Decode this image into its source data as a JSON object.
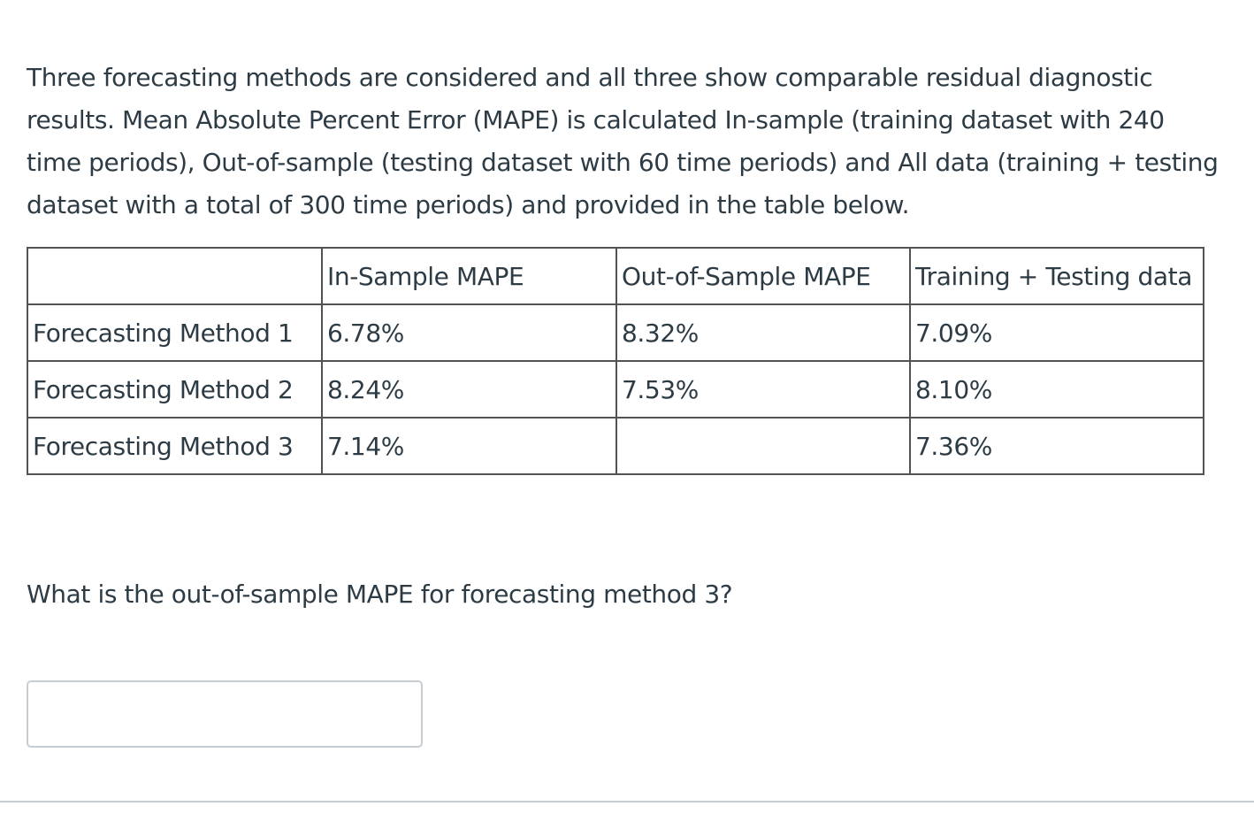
{
  "question": {
    "text": "Three forecasting methods are considered and all three show comparable residual diagnostic results. Mean Absolute Percent Error (MAPE) is calculated In-sample (training dataset with 240 time periods), Out-of-sample (testing dataset with 60 time periods) and All data (training + testing dataset with a total of 300 time periods) and provided in the table below."
  },
  "table": {
    "headers": [
      "",
      "In-Sample MAPE",
      "Out-of-Sample MAPE",
      "Training + Testing data"
    ],
    "rows": [
      [
        "Forecasting Method 1",
        "6.78%",
        "8.32%",
        "7.09%"
      ],
      [
        "Forecasting Method 2",
        "8.24%",
        "7.53%",
        "8.10%"
      ],
      [
        "Forecasting Method 3",
        "7.14%",
        "",
        "7.36%"
      ]
    ]
  },
  "prompt": {
    "text": "What is the out-of-sample MAPE for forecasting method 3?"
  },
  "answer": {
    "value": "",
    "placeholder": ""
  }
}
